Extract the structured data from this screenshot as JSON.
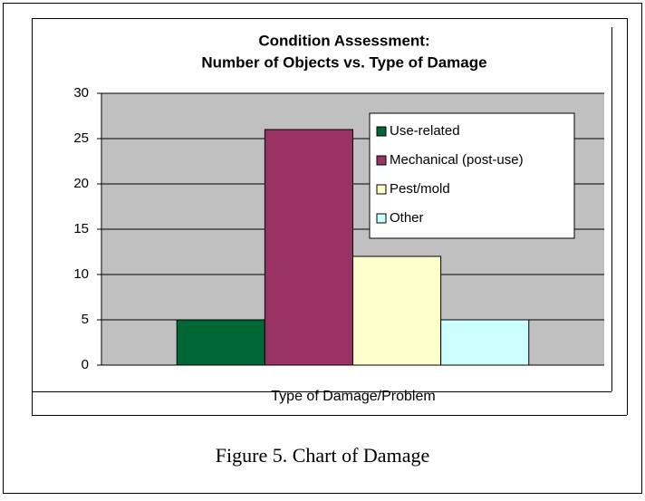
{
  "chart_data": {
    "type": "bar",
    "title": "Condition Assessment:",
    "subtitle": "Number of Objects vs. Type of Damage",
    "x_label": "Type of Damage/Problem",
    "categories": [
      null
    ],
    "series": [
      {
        "name": "Use-related",
        "color": "#006633",
        "values": [
          5
        ]
      },
      {
        "name": "Mechanical (post-use)",
        "color": "#993366",
        "values": [
          26
        ]
      },
      {
        "name": "Pest/mold",
        "color": "#ffffcc",
        "values": [
          12
        ]
      },
      {
        "name": "Other",
        "color": "#ccffff",
        "values": [
          5
        ]
      }
    ],
    "ylim": [
      0,
      30
    ],
    "yticks": [
      0,
      5,
      10,
      15,
      20,
      25,
      30
    ],
    "grid": true,
    "legend": "upper-right",
    "plot_background": "#c0c0c0"
  },
  "caption": "Figure 5. Chart of Damage"
}
